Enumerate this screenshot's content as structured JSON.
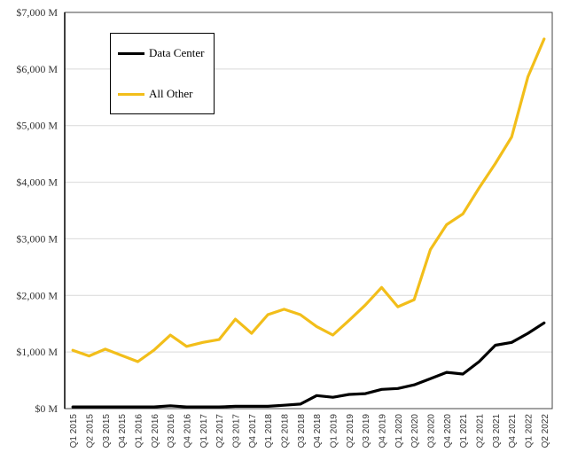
{
  "chart_data": {
    "type": "line",
    "title": "",
    "xlabel": "",
    "ylabel": "",
    "ylim": [
      0,
      7000
    ],
    "y_ticks": [
      0,
      1000,
      2000,
      3000,
      4000,
      5000,
      6000,
      7000
    ],
    "y_tick_labels": [
      "$0 M",
      "$1,000 M",
      "$2,000 M",
      "$3,000 M",
      "$4,000 M",
      "$5,000 M",
      "$6,000 M",
      "$7,000 M"
    ],
    "grid": "horizontal",
    "legend_position": "top-left",
    "categories": [
      "Q1 2015",
      "Q2 2015",
      "Q3 2015",
      "Q4 2015",
      "Q1 2016",
      "Q2 2016",
      "Q3 2016",
      "Q4 2016",
      "Q1 2017",
      "Q2 2017",
      "Q3 2017",
      "Q4 2017",
      "Q1 2018",
      "Q2 2018",
      "Q3 2018",
      "Q4 2018",
      "Q1 2019",
      "Q2 2019",
      "Q3 2019",
      "Q4 2019",
      "Q1 2020",
      "Q2 2020",
      "Q3 2020",
      "Q4 2020",
      "Q1 2021",
      "Q2 2021",
      "Q3 2021",
      "Q4 2021",
      "Q1 2022",
      "Q2 2022"
    ],
    "series": [
      {
        "name": "Data Center",
        "color": "#000000",
        "values": [
          30,
          30,
          30,
          30,
          30,
          30,
          50,
          30,
          30,
          30,
          40,
          40,
          40,
          60,
          80,
          230,
          200,
          250,
          265,
          340,
          355,
          420,
          530,
          640,
          610,
          830,
          1120,
          1170,
          1330,
          1515
        ]
      },
      {
        "name": "All Other",
        "color": "#F2BE1A",
        "values": [
          1030,
          930,
          1050,
          940,
          830,
          1035,
          1300,
          1100,
          1170,
          1220,
          1580,
          1330,
          1660,
          1755,
          1660,
          1450,
          1300,
          1560,
          1830,
          2140,
          1800,
          1925,
          2810,
          3250,
          3440,
          3900,
          4330,
          4800,
          5860,
          6530
        ]
      }
    ]
  }
}
